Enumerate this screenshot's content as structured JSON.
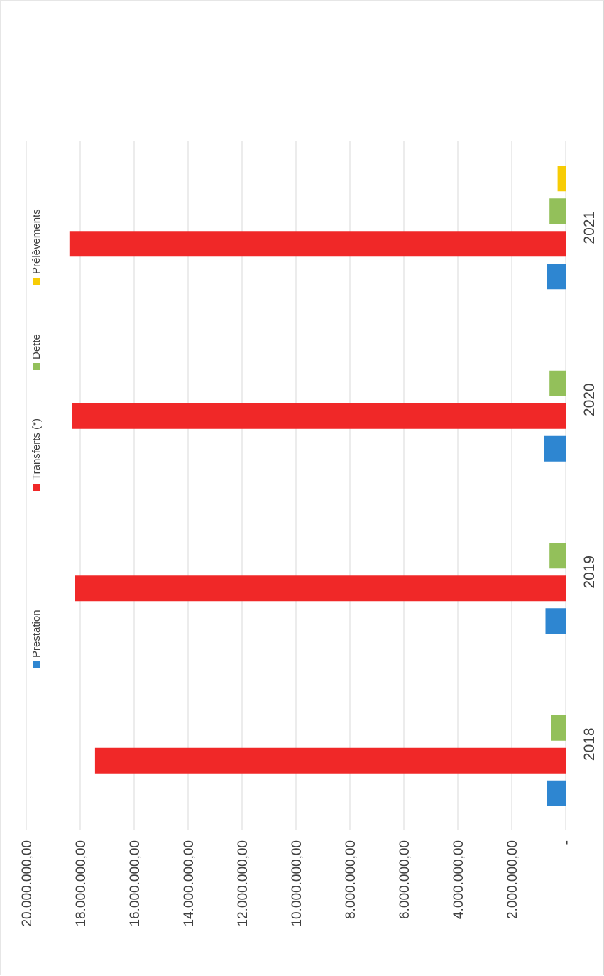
{
  "chart_data": {
    "type": "bar",
    "orientation": "rotated-90-clockwise",
    "title": "",
    "xlabel": "",
    "ylabel": "",
    "categories": [
      "2018",
      "2019",
      "2020",
      "2021"
    ],
    "series": [
      {
        "name": "Prestation",
        "color": "#2e86d1",
        "values": [
          700000,
          750000,
          800000,
          700000
        ]
      },
      {
        "name": "Transferts (*)",
        "color": "#f02828",
        "values": [
          17450000,
          18200000,
          18300000,
          18400000
        ]
      },
      {
        "name": "Dette",
        "color": "#93c05a",
        "values": [
          550000,
          600000,
          600000,
          600000
        ]
      },
      {
        "name": "Prélèvements",
        "color": "#f7cc05",
        "values": [
          0,
          0,
          0,
          300000
        ]
      }
    ],
    "y_ticks": [
      0,
      2000000,
      4000000,
      6000000,
      8000000,
      10000000,
      12000000,
      14000000,
      16000000,
      18000000,
      20000000
    ],
    "y_tick_labels": [
      "-",
      "2.000.000,00",
      "4.000.000,00",
      "6.000.000,00",
      "8.000.000,00",
      "10.000.000,00",
      "12.000.000,00",
      "14.000.000,00",
      "16.000.000,00",
      "18.000.000,00",
      "20.000.000,00"
    ],
    "ylim": [
      0,
      20000000
    ],
    "grid": true,
    "legend": "top"
  }
}
